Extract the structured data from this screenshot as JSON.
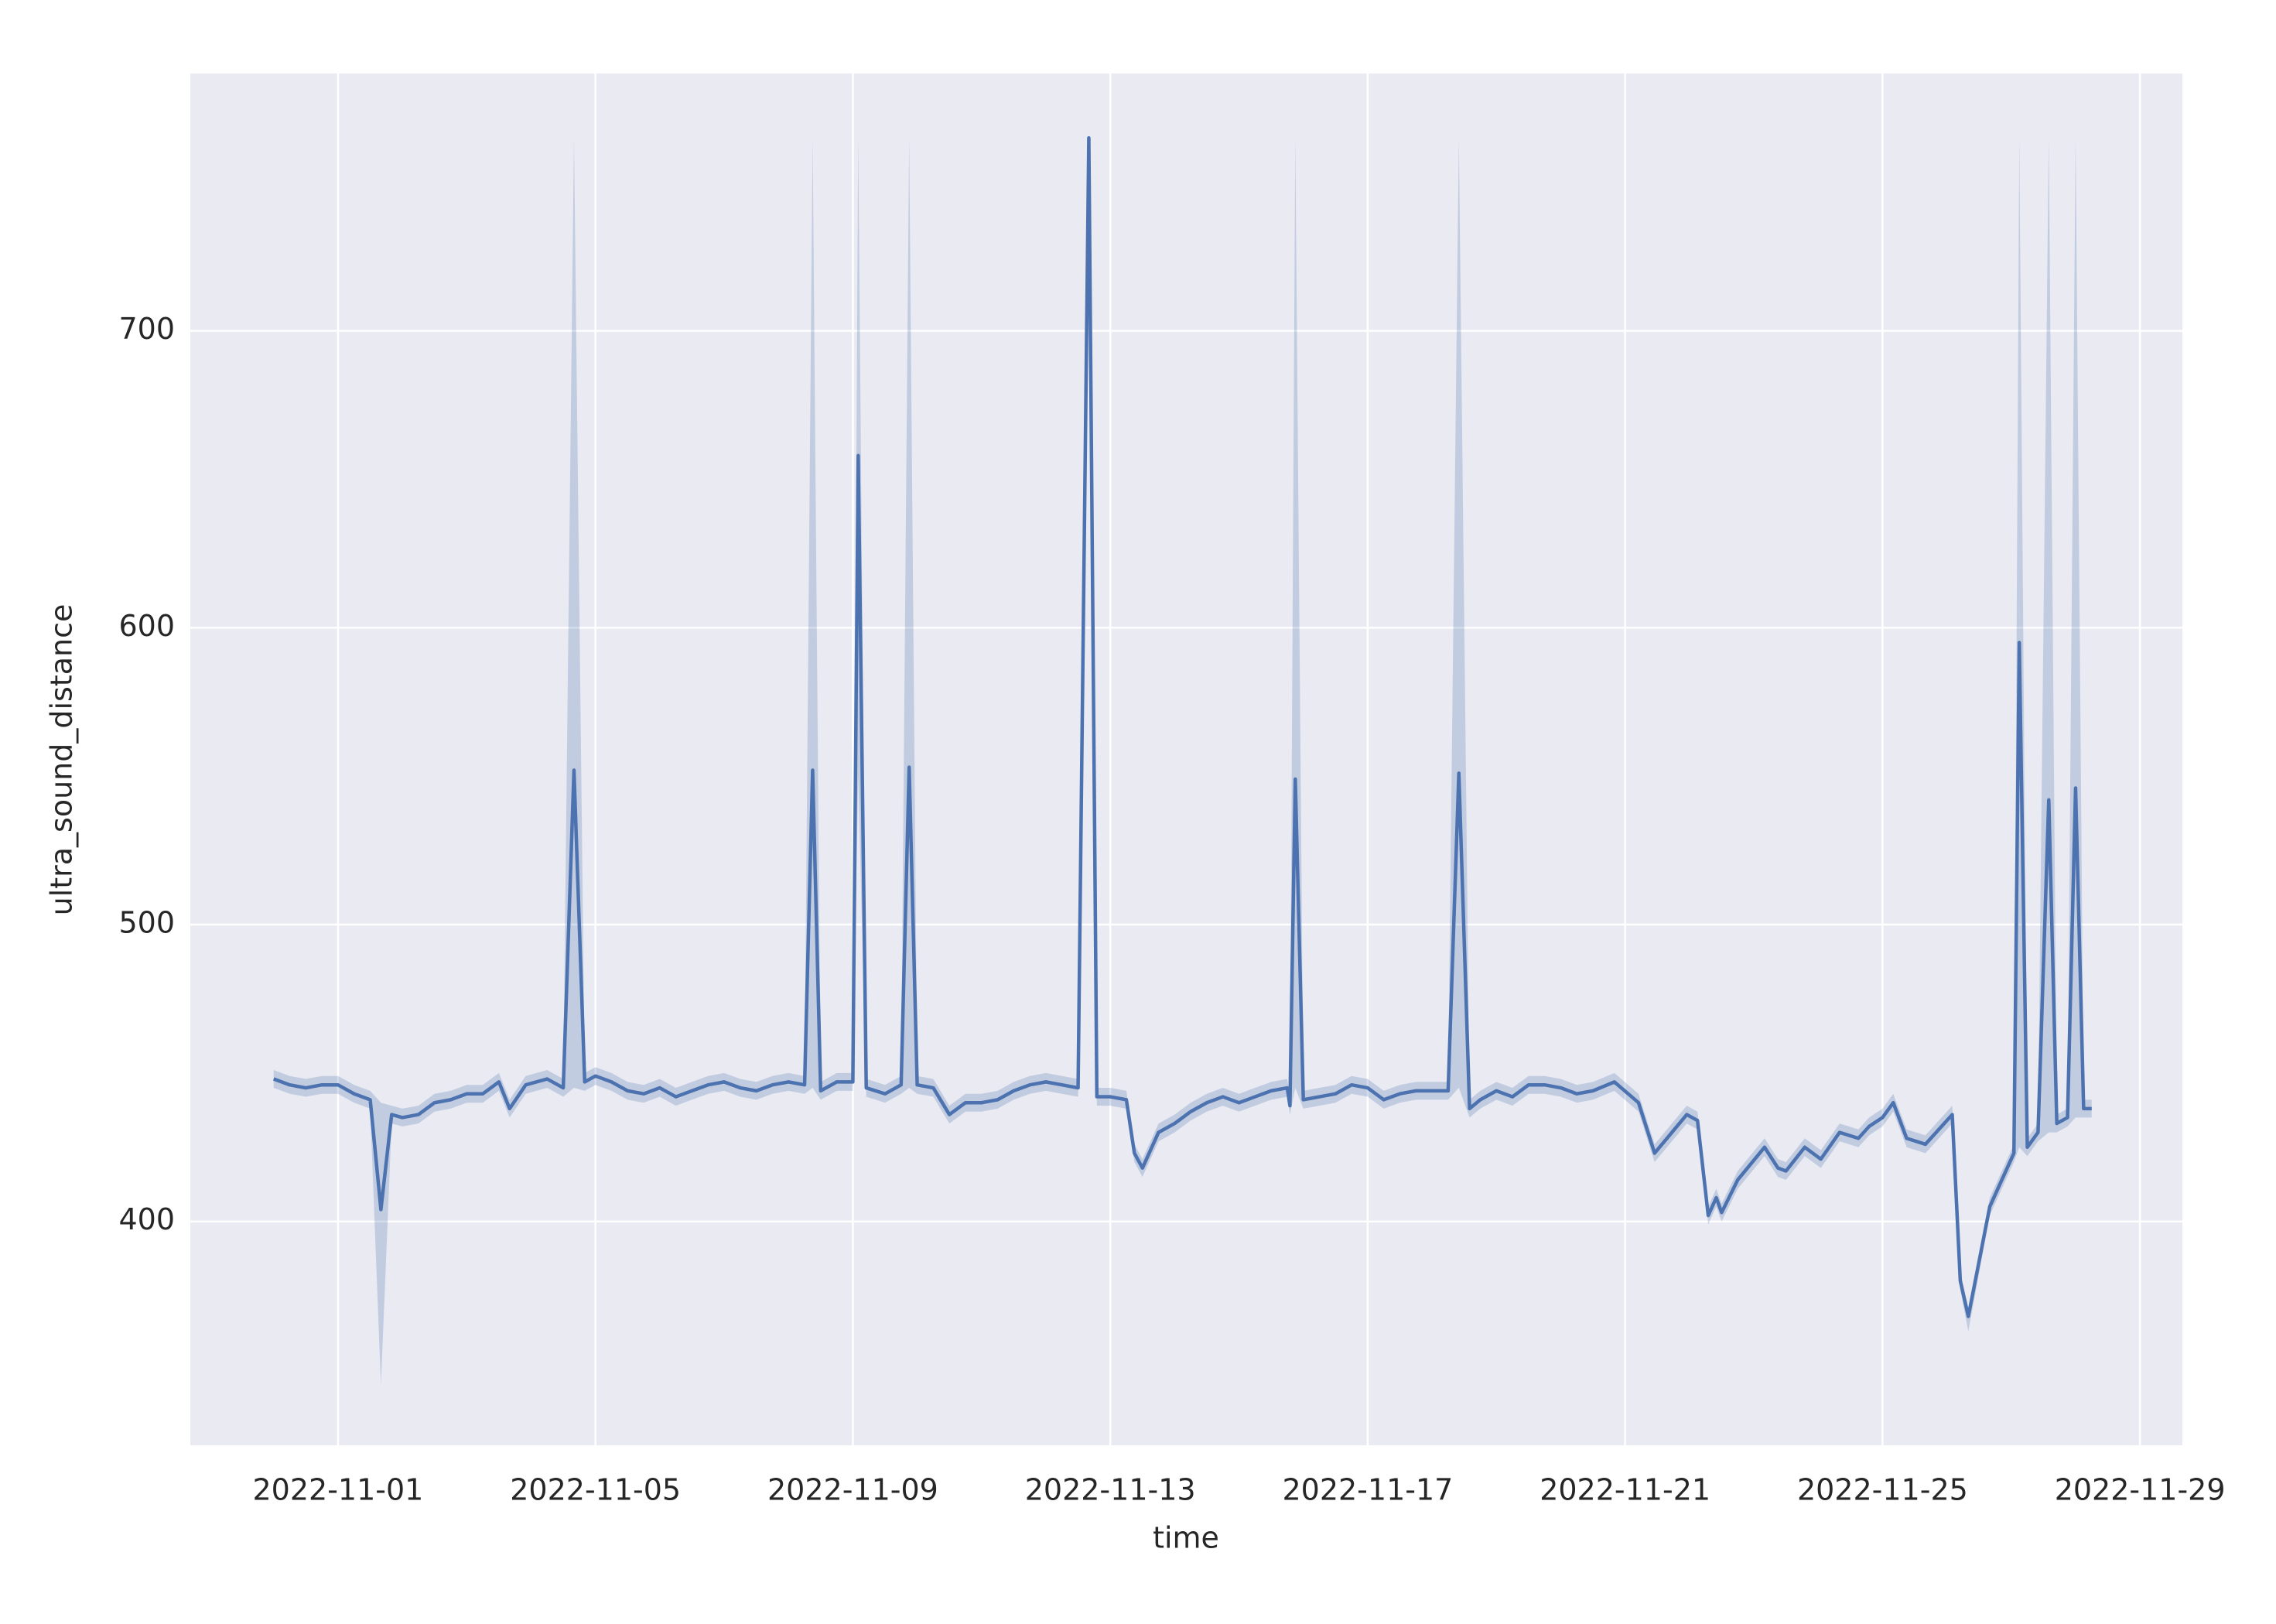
{
  "chart_data": {
    "type": "line",
    "xlabel": "time",
    "ylabel": "ultra_sound_distance",
    "color": "#4c72b0",
    "band_color": "#4c72b0",
    "grid": true,
    "xlim": [
      "2022-10-29 16:55",
      "2022-11-29 15:50"
    ],
    "ylim": [
      324.6,
      786.7
    ],
    "xticks": [
      "2022-11-01",
      "2022-11-05",
      "2022-11-09",
      "2022-11-13",
      "2022-11-17",
      "2022-11-21",
      "2022-11-25",
      "2022-11-29"
    ],
    "yticks": [
      400,
      500,
      600,
      700
    ],
    "x": [
      "2022-10-31 00:00",
      "2022-10-31 06:00",
      "2022-10-31 12:00",
      "2022-10-31 18:00",
      "2022-11-01 00:00",
      "2022-11-01 06:00",
      "2022-11-01 12:00",
      "2022-11-01 16:00",
      "2022-11-01 20:00",
      "2022-11-02 00:00",
      "2022-11-02 06:00",
      "2022-11-02 12:00",
      "2022-11-02 18:00",
      "2022-11-03 00:00",
      "2022-11-03 06:00",
      "2022-11-03 12:00",
      "2022-11-03 16:00",
      "2022-11-03 22:00",
      "2022-11-04 06:00",
      "2022-11-04 12:00",
      "2022-11-04 16:00",
      "2022-11-04 20:00",
      "2022-11-05 00:00",
      "2022-11-05 06:00",
      "2022-11-05 12:00",
      "2022-11-05 18:00",
      "2022-11-06 00:00",
      "2022-11-06 06:00",
      "2022-11-06 12:00",
      "2022-11-06 18:00",
      "2022-11-07 00:00",
      "2022-11-07 06:00",
      "2022-11-07 12:00",
      "2022-11-07 18:00",
      "2022-11-08 00:00",
      "2022-11-08 06:00",
      "2022-11-08 09:00",
      "2022-11-08 12:00",
      "2022-11-08 18:00",
      "2022-11-09 00:00",
      "2022-11-09 02:00",
      "2022-11-09 05:00",
      "2022-11-09 12:00",
      "2022-11-09 18:00",
      "2022-11-09 21:00",
      "2022-11-10 00:00",
      "2022-11-10 06:00",
      "2022-11-10 12:00",
      "2022-11-10 18:00",
      "2022-11-11 00:00",
      "2022-11-11 06:00",
      "2022-11-11 12:00",
      "2022-11-11 18:00",
      "2022-11-12 00:00",
      "2022-11-12 06:00",
      "2022-11-12 12:00",
      "2022-11-12 16:00",
      "2022-11-12 19:00",
      "2022-11-13 00:00",
      "2022-11-13 06:00",
      "2022-11-13 09:00",
      "2022-11-13 12:00",
      "2022-11-13 18:00",
      "2022-11-14 00:00",
      "2022-11-14 06:00",
      "2022-11-14 12:00",
      "2022-11-14 18:00",
      "2022-11-15 00:00",
      "2022-11-15 06:00",
      "2022-11-15 12:00",
      "2022-11-15 18:00",
      "2022-11-15 19:00",
      "2022-11-15 21:00",
      "2022-11-16 00:00",
      "2022-11-16 06:00",
      "2022-11-16 12:00",
      "2022-11-16 18:00",
      "2022-11-17 00:00",
      "2022-11-17 06:00",
      "2022-11-17 12:00",
      "2022-11-17 18:00",
      "2022-11-18 00:00",
      "2022-11-18 06:00",
      "2022-11-18 10:00",
      "2022-11-18 14:00",
      "2022-11-18 18:00",
      "2022-11-19 00:00",
      "2022-11-19 06:00",
      "2022-11-19 12:00",
      "2022-11-19 18:00",
      "2022-11-20 00:00",
      "2022-11-20 06:00",
      "2022-11-20 12:00",
      "2022-11-20 20:00",
      "2022-11-21 05:00",
      "2022-11-21 11:00",
      "2022-11-21 23:00",
      "2022-11-22 03:00",
      "2022-11-22 07:00",
      "2022-11-22 10:00",
      "2022-11-22 12:00",
      "2022-11-22 18:00",
      "2022-11-23 04:00",
      "2022-11-23 09:00",
      "2022-11-23 12:00",
      "2022-11-23 19:00",
      "2022-11-24 01:00",
      "2022-11-24 08:00",
      "2022-11-24 15:00",
      "2022-11-24 19:00",
      "2022-11-25 00:00",
      "2022-11-25 04:00",
      "2022-11-25 09:00",
      "2022-11-25 16:00",
      "2022-11-26 02:00",
      "2022-11-26 05:00",
      "2022-11-26 08:00",
      "2022-11-26 16:00",
      "2022-11-27 01:00",
      "2022-11-27 03:00",
      "2022-11-27 06:00",
      "2022-11-27 10:00",
      "2022-11-27 14:00",
      "2022-11-27 17:00",
      "2022-11-27 21:00",
      "2022-11-28 00:00",
      "2022-11-28 03:00",
      "2022-11-28 06:00"
    ],
    "values": [
      448,
      446,
      445,
      446,
      446,
      443,
      441,
      404,
      436,
      435,
      436,
      440,
      441,
      443,
      443,
      447,
      438,
      446,
      448,
      445,
      552,
      447,
      449,
      447,
      444,
      443,
      445,
      442,
      444,
      446,
      447,
      445,
      444,
      446,
      447,
      446,
      552,
      444,
      447,
      447,
      658,
      445,
      443,
      446,
      553,
      446,
      445,
      436,
      440,
      440,
      441,
      444,
      446,
      447,
      446,
      445,
      765,
      442,
      442,
      441,
      423,
      418,
      430,
      433,
      437,
      440,
      442,
      440,
      442,
      444,
      445,
      439,
      549,
      441,
      442,
      443,
      446,
      445,
      441,
      443,
      444,
      444,
      444,
      551,
      438,
      441,
      444,
      442,
      446,
      446,
      445,
      443,
      444,
      447,
      440,
      423,
      436,
      434,
      402,
      408,
      403,
      414,
      425,
      418,
      417,
      425,
      421,
      430,
      428,
      432,
      435,
      440,
      428,
      426,
      436,
      380,
      368,
      405,
      423,
      595,
      425,
      430,
      542,
      433,
      435,
      546,
      438,
      438
    ],
    "ci_lower": [
      445,
      443,
      442,
      443,
      443,
      440,
      438,
      345,
      433,
      432,
      433,
      437,
      438,
      440,
      440,
      444,
      435,
      443,
      445,
      442,
      445,
      444,
      446,
      444,
      441,
      440,
      442,
      439,
      441,
      443,
      444,
      442,
      441,
      443,
      444,
      443,
      445,
      441,
      444,
      444,
      550,
      442,
      440,
      443,
      445,
      443,
      442,
      433,
      437,
      437,
      438,
      441,
      443,
      444,
      443,
      442,
      760,
      439,
      439,
      438,
      420,
      415,
      427,
      430,
      434,
      437,
      439,
      437,
      439,
      441,
      442,
      436,
      445,
      438,
      439,
      440,
      443,
      442,
      438,
      440,
      441,
      441,
      441,
      445,
      435,
      438,
      441,
      439,
      443,
      443,
      442,
      440,
      441,
      444,
      437,
      420,
      433,
      431,
      399,
      405,
      400,
      411,
      422,
      415,
      414,
      422,
      418,
      427,
      425,
      429,
      432,
      437,
      425,
      423,
      433,
      377,
      363,
      402,
      420,
      425,
      422,
      427,
      430,
      430,
      432,
      435,
      435,
      435
    ],
    "ci_upper": [
      451,
      449,
      448,
      449,
      449,
      446,
      444,
      440,
      439,
      438,
      439,
      443,
      444,
      446,
      446,
      450,
      441,
      449,
      451,
      448,
      765,
      450,
      452,
      450,
      447,
      446,
      448,
      445,
      447,
      449,
      450,
      448,
      447,
      449,
      450,
      449,
      765,
      447,
      450,
      450,
      765,
      448,
      446,
      449,
      765,
      449,
      448,
      439,
      443,
      443,
      444,
      447,
      449,
      450,
      449,
      448,
      765,
      445,
      445,
      444,
      426,
      421,
      433,
      436,
      440,
      443,
      445,
      443,
      445,
      447,
      448,
      442,
      765,
      444,
      445,
      446,
      449,
      448,
      444,
      446,
      447,
      447,
      447,
      765,
      441,
      444,
      447,
      445,
      449,
      449,
      448,
      446,
      447,
      450,
      443,
      426,
      439,
      437,
      405,
      411,
      406,
      417,
      428,
      421,
      420,
      428,
      424,
      433,
      431,
      435,
      438,
      443,
      431,
      429,
      439,
      383,
      371,
      408,
      426,
      765,
      428,
      433,
      765,
      436,
      438,
      765,
      441,
      441
    ]
  }
}
